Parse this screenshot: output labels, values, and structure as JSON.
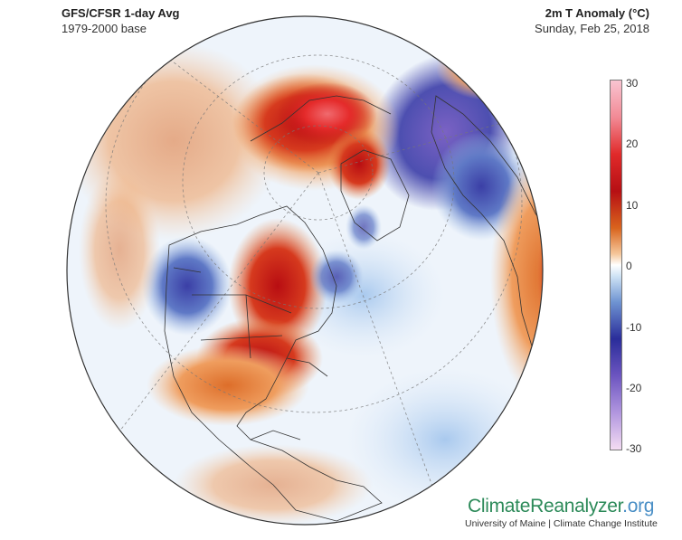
{
  "header": {
    "title_left": "GFS/CFSR 1-day Avg",
    "subtitle_left": "1979-2000 base",
    "title_right": "2m T Anomaly (°C)",
    "subtitle_right": "Sunday, Feb 25, 2018"
  },
  "colorbar": {
    "ticks": [
      "30",
      "20",
      "10",
      "0",
      "-10",
      "-20",
      "-30"
    ],
    "range": [
      -30,
      30
    ],
    "colors": [
      "#f4dcf3",
      "#b196df",
      "#6c55c0",
      "#2a2d9a",
      "#6f94d2",
      "#ffffff",
      "#f5c79a",
      "#d9641d",
      "#b60f14",
      "#e02a2a",
      "#f9c4d1"
    ]
  },
  "branding": {
    "name_part1": "ClimateReanalyzer",
    "name_part2": ".org",
    "subtitle": "University of Maine | Climate Change Institute"
  }
}
